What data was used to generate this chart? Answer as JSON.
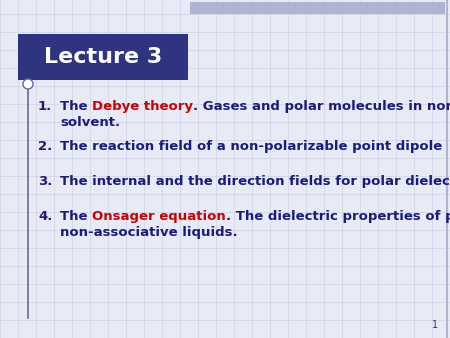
{
  "title": "Lecture 3",
  "title_bg_color": "#2E3480",
  "title_text_color": "#FFFFFF",
  "slide_bg_color": "#E8EAF6",
  "grid_color": "#C8CCE0",
  "top_bar_color": "#B0B4D0",
  "border_right_color": "#B0B4CC",
  "page_number": "1",
  "left_bar_color": "#6668AA",
  "dark_blue": "#1A1A80",
  "red": "#CC0000",
  "item1_line1_normal": "The ",
  "item1_red": "Debye theory",
  "item1_line1_rest": ". Gases and polar molecules in non-polar",
  "item1_line2": "solvent.",
  "item2": "The reaction field of a non-polarizable point dipole",
  "item3": "The internal and the direction fields for polar dielectrics.",
  "item4_line1_normal": "The ",
  "item4_red": "Onsager equation",
  "item4_line1_rest": ". The dielectric properties of polar",
  "item4_line2": "non-associative liquids.",
  "font_size": 9.5,
  "title_font_size": 16
}
